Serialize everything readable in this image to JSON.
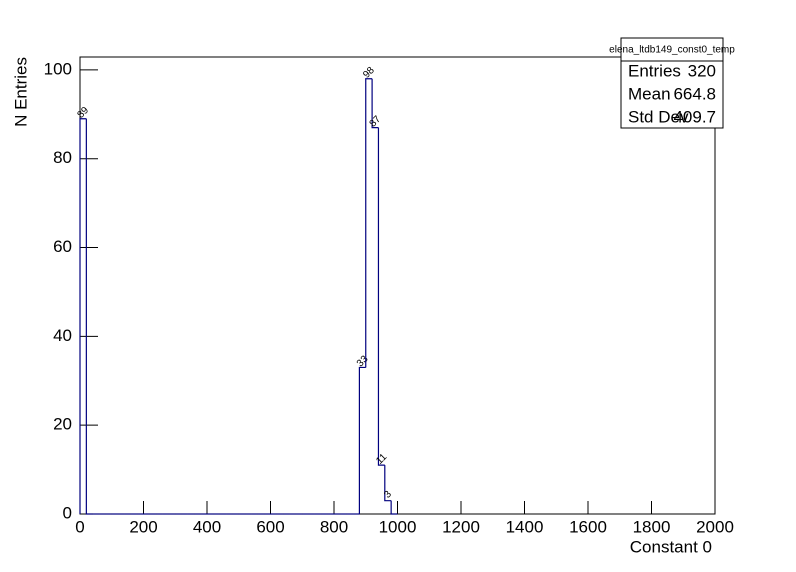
{
  "chart_data": {
    "type": "histogram",
    "x_label": "Constant 0",
    "y_label": "N Entries",
    "bins": [
      0,
      20,
      40,
      60,
      80,
      100,
      120,
      140,
      160,
      180,
      200,
      220,
      240,
      260,
      280,
      300,
      320,
      340,
      360,
      380,
      400,
      420,
      440,
      460,
      480,
      500,
      520,
      540,
      560,
      580,
      600,
      620,
      640,
      660,
      680,
      700,
      720,
      740,
      760,
      780,
      800,
      820,
      840,
      860,
      880,
      900,
      920,
      940,
      960,
      980,
      1000
    ],
    "values": [
      89,
      0,
      0,
      0,
      0,
      0,
      0,
      0,
      0,
      0,
      0,
      0,
      0,
      0,
      0,
      0,
      0,
      0,
      0,
      0,
      0,
      0,
      0,
      0,
      0,
      0,
      0,
      0,
      0,
      0,
      0,
      0,
      0,
      0,
      0,
      0,
      0,
      0,
      0,
      0,
      0,
      0,
      0,
      0,
      33,
      98,
      87,
      11,
      3,
      0
    ],
    "color": "#00007f",
    "xlim": [
      0,
      2000
    ],
    "ylim": [
      0,
      102.9
    ],
    "xticks": [
      0,
      200,
      400,
      600,
      800,
      1000,
      1200,
      1400,
      1600,
      1800,
      2000
    ],
    "yticks": [
      0,
      20,
      40,
      60,
      80,
      100
    ],
    "stats": {
      "title": "elena_ltdb149_const0_temp",
      "rows": [
        [
          "Entries",
          320
        ],
        [
          "Mean",
          664.8
        ],
        [
          "Std Dev",
          409.7
        ]
      ]
    }
  }
}
